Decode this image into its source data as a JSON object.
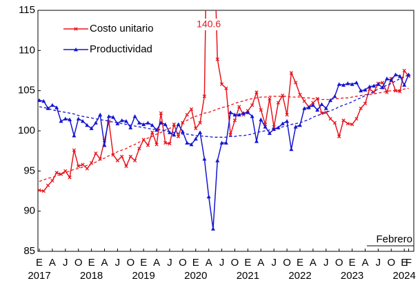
{
  "chart_data": {
    "type": "line",
    "categories": [
      "E",
      null,
      null,
      "A",
      null,
      null,
      "J",
      null,
      null,
      "O",
      null,
      null,
      "E",
      null,
      null,
      "A",
      null,
      null,
      "J",
      null,
      null,
      "O",
      null,
      null,
      "E",
      null,
      null,
      "A",
      null,
      null,
      "J",
      null,
      null,
      "O",
      null,
      null,
      "E",
      null,
      null,
      "A",
      null,
      null,
      "J",
      null,
      null,
      "O",
      null,
      null,
      "E",
      null,
      null,
      "A",
      null,
      null,
      "J",
      null,
      null,
      "O",
      null,
      null,
      "E",
      null,
      null,
      "A",
      null,
      null,
      "J",
      null,
      null,
      "O",
      null,
      null,
      "E",
      null,
      null,
      "A",
      null,
      null,
      "J",
      null,
      null,
      "O",
      null,
      null,
      "E",
      "F"
    ],
    "years": [
      "2017",
      null,
      null,
      null,
      null,
      null,
      null,
      null,
      null,
      null,
      null,
      null,
      "2018",
      null,
      null,
      null,
      null,
      null,
      null,
      null,
      null,
      null,
      null,
      null,
      "2019",
      null,
      null,
      null,
      null,
      null,
      null,
      null,
      null,
      null,
      null,
      null,
      "2020",
      null,
      null,
      null,
      null,
      null,
      null,
      null,
      null,
      null,
      null,
      null,
      "2021",
      null,
      null,
      null,
      null,
      null,
      null,
      null,
      null,
      null,
      null,
      null,
      "2022",
      null,
      null,
      null,
      null,
      null,
      null,
      null,
      null,
      null,
      null,
      null,
      "2023",
      null,
      null,
      null,
      null,
      null,
      null,
      null,
      null,
      null,
      null,
      null,
      "2024",
      null
    ],
    "series": [
      {
        "name": "Costo unitario",
        "color": "#e8141c",
        "marker": "x",
        "values": [
          92.6,
          92.5,
          93.2,
          93.8,
          94.8,
          94.6,
          95.0,
          94.2,
          97.6,
          95.6,
          95.8,
          95.3,
          96.0,
          97.2,
          96.5,
          98.8,
          101.2,
          97.0,
          96.3,
          96.8,
          95.6,
          96.8,
          96.3,
          97.8,
          98.9,
          98.2,
          99.8,
          98.3,
          102.2,
          98.5,
          98.4,
          100.8,
          99.3,
          101.0,
          102.0,
          102.7,
          100.3,
          101.0,
          104.3,
          140.6,
          128.0,
          108.9,
          105.8,
          105.3,
          99.5,
          101.3,
          103.0,
          102.0,
          102.5,
          103.2,
          104.8,
          102.6,
          100.8,
          104.0,
          100.5,
          103.5,
          104.4,
          102.0,
          107.2,
          106.0,
          104.5,
          103.7,
          103.0,
          103.5,
          104.0,
          102.2,
          102.3,
          101.5,
          101.0,
          99.3,
          101.3,
          100.9,
          100.8,
          101.5,
          102.8,
          103.4,
          105.2,
          104.8,
          105.9,
          106.0,
          104.8,
          106.5,
          105.0,
          104.9,
          107.5,
          106.8
        ],
        "trend": [
          93.7,
          93.9,
          94.1,
          94.2,
          94.4,
          94.6,
          94.8,
          95.0,
          95.2,
          95.3,
          95.5,
          95.7,
          95.9,
          96.1,
          96.4,
          96.6,
          96.9,
          97.1,
          97.4,
          97.6,
          97.8,
          98.1,
          98.3,
          98.6,
          98.8,
          99.1,
          99.3,
          99.6,
          99.8,
          100.1,
          100.3,
          100.6,
          100.8,
          101.1,
          101.3,
          101.6,
          101.8,
          102.0,
          102.2,
          102.3,
          102.5,
          102.7,
          102.9,
          103.0,
          103.2,
          103.4,
          103.6,
          103.7,
          103.9,
          104.0,
          104.1,
          104.2,
          104.2,
          104.3,
          104.3,
          104.3,
          104.3,
          104.3,
          104.2,
          104.2,
          104.2,
          104.1,
          104.1,
          104.0,
          104.0,
          103.9,
          103.9,
          103.9,
          104.0,
          104.0,
          104.1,
          104.1,
          104.2,
          104.3,
          104.4,
          104.5,
          104.5,
          104.6,
          104.7,
          104.8,
          104.9,
          105.0,
          105.0,
          105.1,
          105.2,
          105.3
        ]
      },
      {
        "name": "Productividad",
        "color": "#1414d2",
        "marker": "triangle",
        "values": [
          103.8,
          103.7,
          102.8,
          103.2,
          102.9,
          101.2,
          101.5,
          101.4,
          99.4,
          101.5,
          101.2,
          100.7,
          100.3,
          101.0,
          102.0,
          98.2,
          101.8,
          101.7,
          100.9,
          101.3,
          101.2,
          100.4,
          101.8,
          101.0,
          100.8,
          101.0,
          100.7,
          100.1,
          101.0,
          100.8,
          99.8,
          99.5,
          100.8,
          99.9,
          98.5,
          98.3,
          99.0,
          99.8,
          96.5,
          91.8,
          87.8,
          96.3,
          98.5,
          98.5,
          102.3,
          102.0,
          102.0,
          102.2,
          102.3,
          101.8,
          98.7,
          101.4,
          100.5,
          99.7,
          100.2,
          100.4,
          100.9,
          101.2,
          97.7,
          100.5,
          100.7,
          102.8,
          102.9,
          103.2,
          102.6,
          103.3,
          102.8,
          103.8,
          104.3,
          105.8,
          105.7,
          105.9,
          105.8,
          106.0,
          105.0,
          105.1,
          105.5,
          105.6,
          105.8,
          105.4,
          106.5,
          106.3,
          107.0,
          106.8,
          105.7,
          107.0
        ],
        "trend": [
          103.0,
          102.9,
          102.8,
          102.6,
          102.5,
          102.4,
          102.3,
          102.2,
          102.1,
          101.9,
          101.8,
          101.7,
          101.6,
          101.5,
          101.4,
          101.3,
          101.2,
          101.1,
          101.0,
          100.9,
          100.8,
          100.7,
          100.6,
          100.5,
          100.4,
          100.3,
          100.2,
          100.2,
          100.1,
          100.0,
          99.9,
          99.8,
          99.7,
          99.6,
          99.6,
          99.5,
          99.4,
          99.4,
          99.3,
          99.3,
          99.2,
          99.2,
          99.2,
          99.2,
          99.3,
          99.3,
          99.4,
          99.4,
          99.5,
          99.6,
          99.8,
          99.9,
          100.0,
          100.1,
          100.3,
          100.4,
          100.5,
          100.6,
          100.8,
          100.9,
          101.0,
          101.2,
          101.4,
          101.7,
          101.9,
          102.1,
          102.3,
          102.5,
          102.7,
          103.0,
          103.2,
          103.4,
          103.6,
          103.9,
          104.1,
          104.4,
          104.6,
          104.9,
          105.2,
          105.4,
          105.7,
          105.9,
          106.2,
          106.5,
          106.7,
          107.0
        ]
      }
    ],
    "ylim": [
      85,
      115
    ],
    "yticks": [
      85,
      90,
      95,
      100,
      105,
      110,
      115
    ],
    "annotation": "Febrero",
    "labeled_point": {
      "series": 0,
      "index": 39
    },
    "grid": false,
    "legend": "upper left"
  }
}
